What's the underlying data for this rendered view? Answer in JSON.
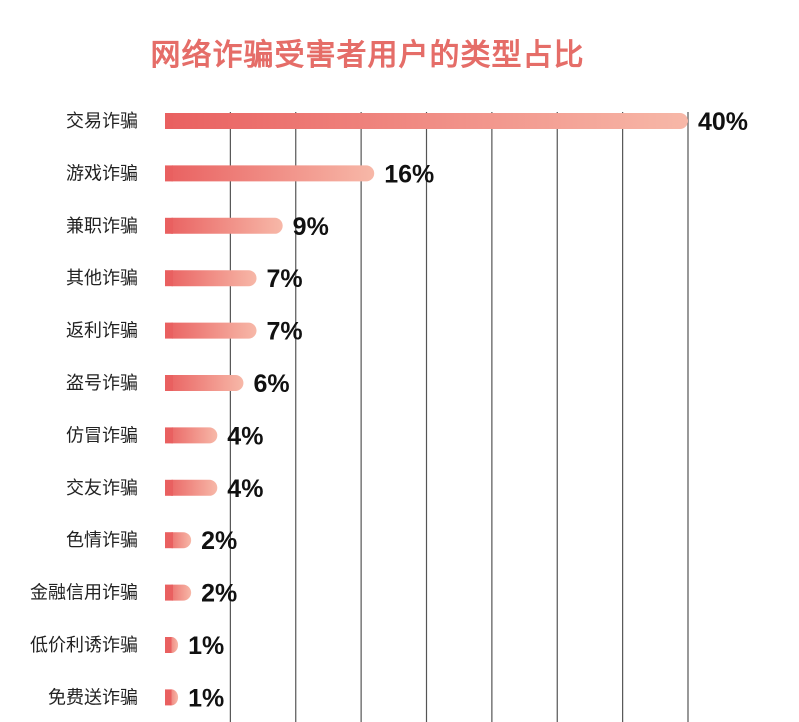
{
  "colors": {
    "title": "#e56d68",
    "bar_start": "#e96060",
    "bar_end": "#f7b8a8",
    "grid": "#555555",
    "text": "#222222"
  },
  "chart_data": {
    "type": "bar",
    "orientation": "horizontal",
    "title": "网络诈骗受害者用户的类型占比",
    "xlabel": "",
    "ylabel": "",
    "unit": "%",
    "xlim": [
      0,
      40
    ],
    "grid": "vertical",
    "categories": [
      "交易诈骗",
      "游戏诈骗",
      "兼职诈骗",
      "其他诈骗",
      "返利诈骗",
      "盗号诈骗",
      "仿冒诈骗",
      "交友诈骗",
      "色情诈骗",
      "金融信用诈骗",
      "低价利诱诈骗",
      "免费送诈骗"
    ],
    "values": [
      40,
      16,
      9,
      7,
      7,
      6,
      4,
      4,
      2,
      2,
      1,
      1
    ],
    "value_labels": [
      "40%",
      "16%",
      "9%",
      "7%",
      "7%",
      "6%",
      "4%",
      "4%",
      "2%",
      "2%",
      "1%",
      "1%"
    ]
  }
}
